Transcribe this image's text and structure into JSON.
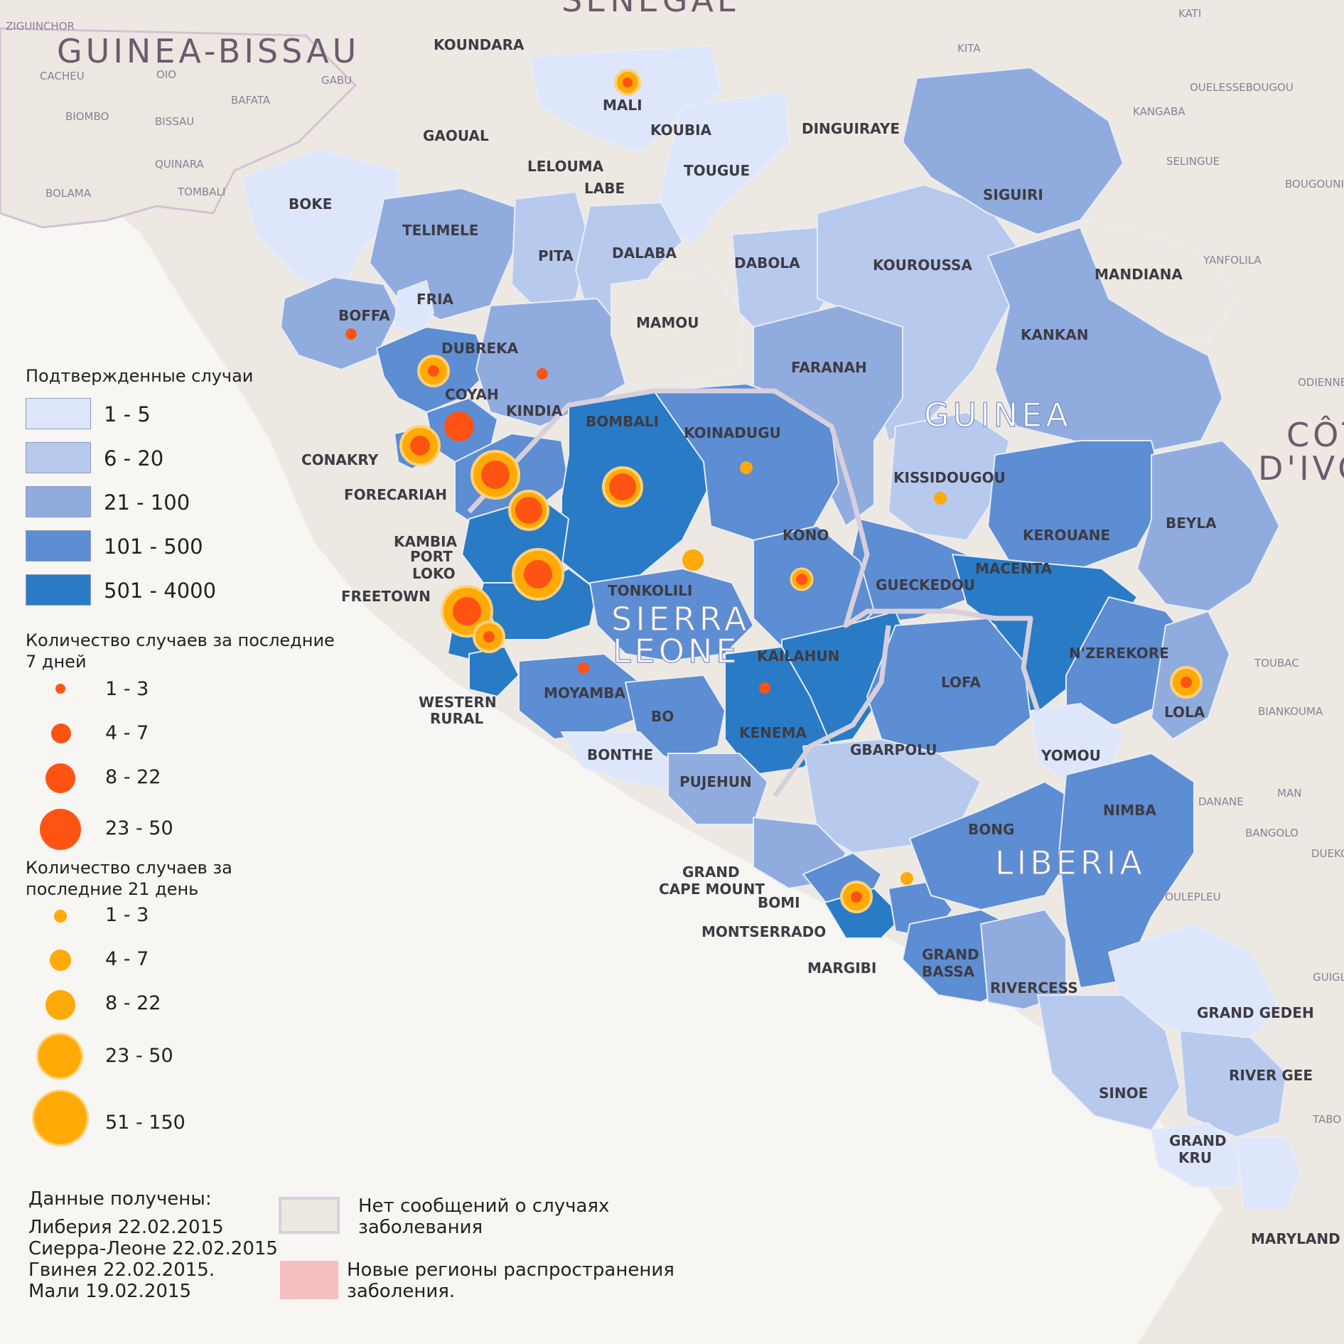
{
  "countries": {
    "guinea_bissau": "GUINEA-BISSAU",
    "senegal": "SENEGAL",
    "guinea": "GUINEA",
    "sierra_leone": [
      "SIERRA",
      "LEONE"
    ],
    "liberia": "LIBERIA",
    "cote_divoire": [
      "CÔT",
      "D'IVO"
    ]
  },
  "regions": {
    "koundara": "KOUNDARA",
    "mali": "MALI",
    "koubia": "KOUBIA",
    "gaoual": "GAOUAL",
    "lelouma": "LELOUMA",
    "labe": "LABE",
    "tougue": "TOUGUE",
    "dinguiraye": "DINGUIRAYE",
    "siguiri": "SIGUIRI",
    "boke": "BOKE",
    "telimele": "TELIMELE",
    "pita": "PITA",
    "dalaba": "DALABA",
    "dabola": "DABOLA",
    "kouroussa": "KOUROUSSA",
    "mandiana": "MANDIANA",
    "fria": "FRIA",
    "boffa": "BOFFA",
    "mamou": "MAMOU",
    "dubreka": "DUBREKA",
    "kankan": "KANKAN",
    "faranah": "FARANAH",
    "coyah": "COYAH",
    "kindia": "KINDIA",
    "bombali": "BOMBALI",
    "koinadugu": "KOINADUGU",
    "conakry": "CONAKRY",
    "kissidougou": "KISSIDOUGOU",
    "forecariah": "FORECARIAH",
    "beyla": "BEYLA",
    "kono": "KONO",
    "kerouane": "KEROUANE",
    "kambia": "KAMBIA",
    "port_loko": [
      "PORT",
      "LOKO"
    ],
    "macenta": "MACENTA",
    "gueckedou": "GUECKEDOU",
    "tonkolili": "TONKOLILI",
    "freetown": "FREETOWN",
    "kailahun": "KAILAHUN",
    "nzerekore": "N'ZEREKORE",
    "lofa": "LOFA",
    "moyamba": "MOYAMBA",
    "western_rural": [
      "WESTERN",
      "RURAL"
    ],
    "lola": "LOLA",
    "bo": "BO",
    "kenema": "KENEMA",
    "bonthe": "BONTHE",
    "gbarpolu": "GBARPOLU",
    "yomou": "YOMOU",
    "pujehun": "PUJEHUN",
    "nimba": "NIMBA",
    "bong": "BONG",
    "grand_cape_mount": [
      "GRAND",
      "CAPE MOUNT"
    ],
    "bomi": "BOMI",
    "montserrado": "MONTSERRADO",
    "grand_bassa": [
      "GRAND",
      "BASSA"
    ],
    "margibi": "MARGIBI",
    "rivercess": "RIVERCESS",
    "grand_gedeh": "GRAND GEDEH",
    "river_gee": "RIVER GEE",
    "sinoe": "SINOE",
    "grand_kru": [
      "GRAND",
      "KRU"
    ],
    "maryland": "MARYLAND"
  },
  "towns": {
    "ziguinchor": "ZIGUINCHOR",
    "cacheu": "CACHEU",
    "oio": "OIO",
    "gabu": "GABU",
    "bafata": "BAFATA",
    "biombo": "BIOMBO",
    "bissau": "BISSAU",
    "quinara": "QUINARA",
    "bolama": "BOLAMA",
    "tombali": "TOMBALI",
    "kati": "KATI",
    "kita": "KITA",
    "ouelessebougou": "OUELESSEBOUGOU",
    "kangaba": "KANGABA",
    "selingue": "SELINGUE",
    "bougouni": "BOUGOUNI",
    "yanfolila": "YANFOLILA",
    "odienne": "ODIENNE",
    "toubac": "TOUBAC",
    "biankouma": "BIANKOUMA",
    "danane": "DANANE",
    "man": "MAN",
    "bangolo": "BANGOLO",
    "duekoue": "DUEKO",
    "toulepleu": "TOULEPLEU",
    "guiglo": "GUIGL",
    "tabou": "TABO"
  },
  "legend": {
    "confirmed_title": "Подтвержденные случаи",
    "confirmed_bins": [
      {
        "label": "1 - 5",
        "color": "#dde6fb"
      },
      {
        "label": "6 - 20",
        "color": "#b8c9ee"
      },
      {
        "label": "21 - 100",
        "color": "#90acdf"
      },
      {
        "label": "101 - 500",
        "color": "#5d8dd2"
      },
      {
        "label": "501 - 4000",
        "color": "#2a7bc6"
      }
    ],
    "week_title": [
      "Количество случаев за последние",
      "7 дней"
    ],
    "week_bins": [
      "1 - 3",
      "4 - 7",
      "8 - 22",
      "23 - 50"
    ],
    "week_color": "#ff5314",
    "days21_title": [
      "Количество случаев за",
      "последние 21 день"
    ],
    "days21_bins": [
      "1 - 3",
      "4 - 7",
      "8 - 22",
      "23 - 50",
      "51 - 150"
    ],
    "days21_color": "#ffaa06",
    "no_cases_label": [
      "Нет сообщений о случаях",
      "заболевания"
    ],
    "no_cases_color": "#ede9e2",
    "new_regions_label": [
      "Новые регионы распространения",
      "заболения."
    ],
    "new_regions_color": "#f6bfbf"
  },
  "sources": {
    "title": "Данные получены:",
    "lines": [
      "Либерия 22.02.2015",
      "Сиерра-Леоне 22.02.2015",
      "Гвинея 22.02.2015.",
      "Мали 19.02.2015"
    ]
  }
}
